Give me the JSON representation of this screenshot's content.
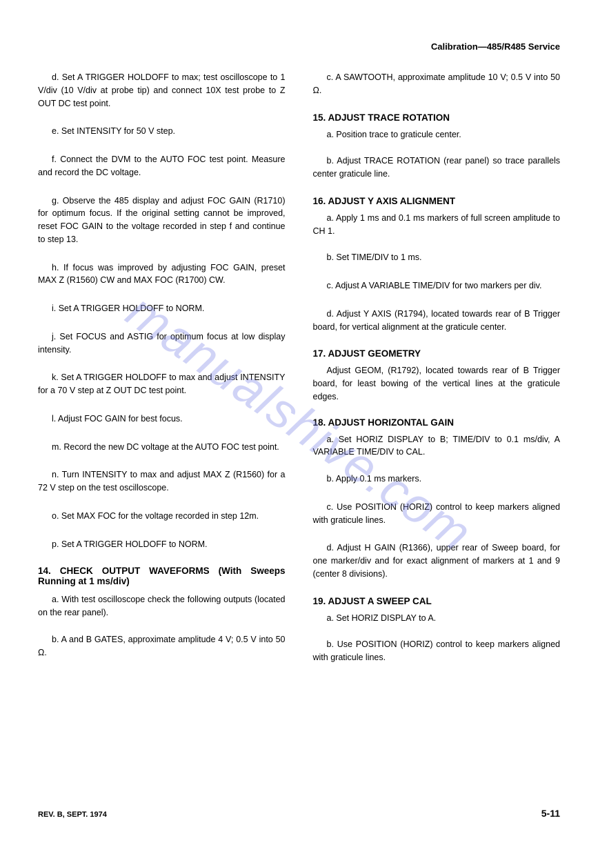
{
  "header": "Calibration—485/R485 Service",
  "watermark": "manualshive.com",
  "left": {
    "p_d": "d. Set A TRIGGER HOLDOFF to max; test oscilloscope to 1 V/div (10 V/div at probe tip) and connect 10X test probe to Z OUT DC test point.",
    "p_e": "e. Set INTENSITY for 50 V step.",
    "p_f": "f. Connect the DVM to the AUTO FOC test point. Measure and record the DC voltage.",
    "p_g": "g. Observe the 485 display and adjust FOC GAIN (R1710) for optimum focus. If the original setting cannot be improved, reset FOC GAIN to the voltage recorded in step f and continue to step 13.",
    "p_h": "h. If focus was improved by adjusting FOC GAIN, preset MAX Z (R1560) CW and MAX FOC (R1700) CW.",
    "p_i": "i. Set A TRIGGER HOLDOFF to NORM.",
    "p_j": "j. Set FOCUS and ASTIG for optimum focus at low display intensity.",
    "p_k": "k. Set A TRIGGER HOLDOFF to max and adjust INTENSITY for a 70 V step at Z OUT DC test point.",
    "p_l": "l. Adjust FOC GAIN for best focus.",
    "p_m": "m. Record the new DC voltage at the AUTO FOC test point.",
    "p_n": "n. Turn INTENSITY to max and adjust MAX Z (R1560) for a 72 V step on the test oscilloscope.",
    "p_o": "o. Set MAX FOC for the voltage recorded in step 12m.",
    "p_p": "p. Set A TRIGGER HOLDOFF to NORM.",
    "h14": "14. CHECK OUTPUT WAVEFORMS (With Sweeps Running at 1 ms/div)",
    "p14a": "a. With test oscilloscope check the following outputs (located on the rear panel).",
    "p14b": "b. A and B GATES, approximate amplitude 4 V; 0.5 V into 50 Ω."
  },
  "right": {
    "p14c": "c. A SAWTOOTH, approximate amplitude 10 V; 0.5 V into 50 Ω.",
    "h15": "15. ADJUST TRACE ROTATION",
    "p15a": "a. Position trace to graticule center.",
    "p15b": "b. Adjust TRACE ROTATION (rear panel) so trace parallels center graticule line.",
    "h16": "16. ADJUST Y AXIS ALIGNMENT",
    "p16a": "a. Apply 1 ms and 0.1 ms markers of full screen amplitude to CH 1.",
    "p16b": "b. Set TIME/DIV to 1 ms.",
    "p16c": "c. Adjust A VARIABLE TIME/DIV for two markers per div.",
    "p16d": "d. Adjust Y AXIS (R1794), located towards rear of B Trigger board, for vertical alignment at the graticule center.",
    "h17": "17. ADJUST GEOMETRY",
    "p17": "Adjust GEOM, (R1792), located towards rear of B Trigger board, for least bowing of the vertical lines at the graticule edges.",
    "h18": "18. ADJUST HORIZONTAL GAIN",
    "p18a": "a. Set HORIZ DISPLAY to B; TIME/DIV to 0.1 ms/div, A VARIABLE TIME/DIV to CAL.",
    "p18b": "b. Apply 0.1 ms markers.",
    "p18c": "c. Use POSITION (HORIZ) control to keep markers aligned with graticule lines.",
    "p18d": "d. Adjust H GAIN (R1366), upper rear of Sweep board, for one marker/div and for exact alignment of markers at 1 and 9 (center 8 divisions).",
    "h19": "19. ADJUST A SWEEP CAL",
    "p19a": "a. Set HORIZ DISPLAY to A.",
    "p19b": "b. Use POSITION (HORIZ) control to keep markers aligned with graticule lines."
  },
  "footer": {
    "left": "REV. B, SEPT. 1974",
    "right": "5-11"
  }
}
